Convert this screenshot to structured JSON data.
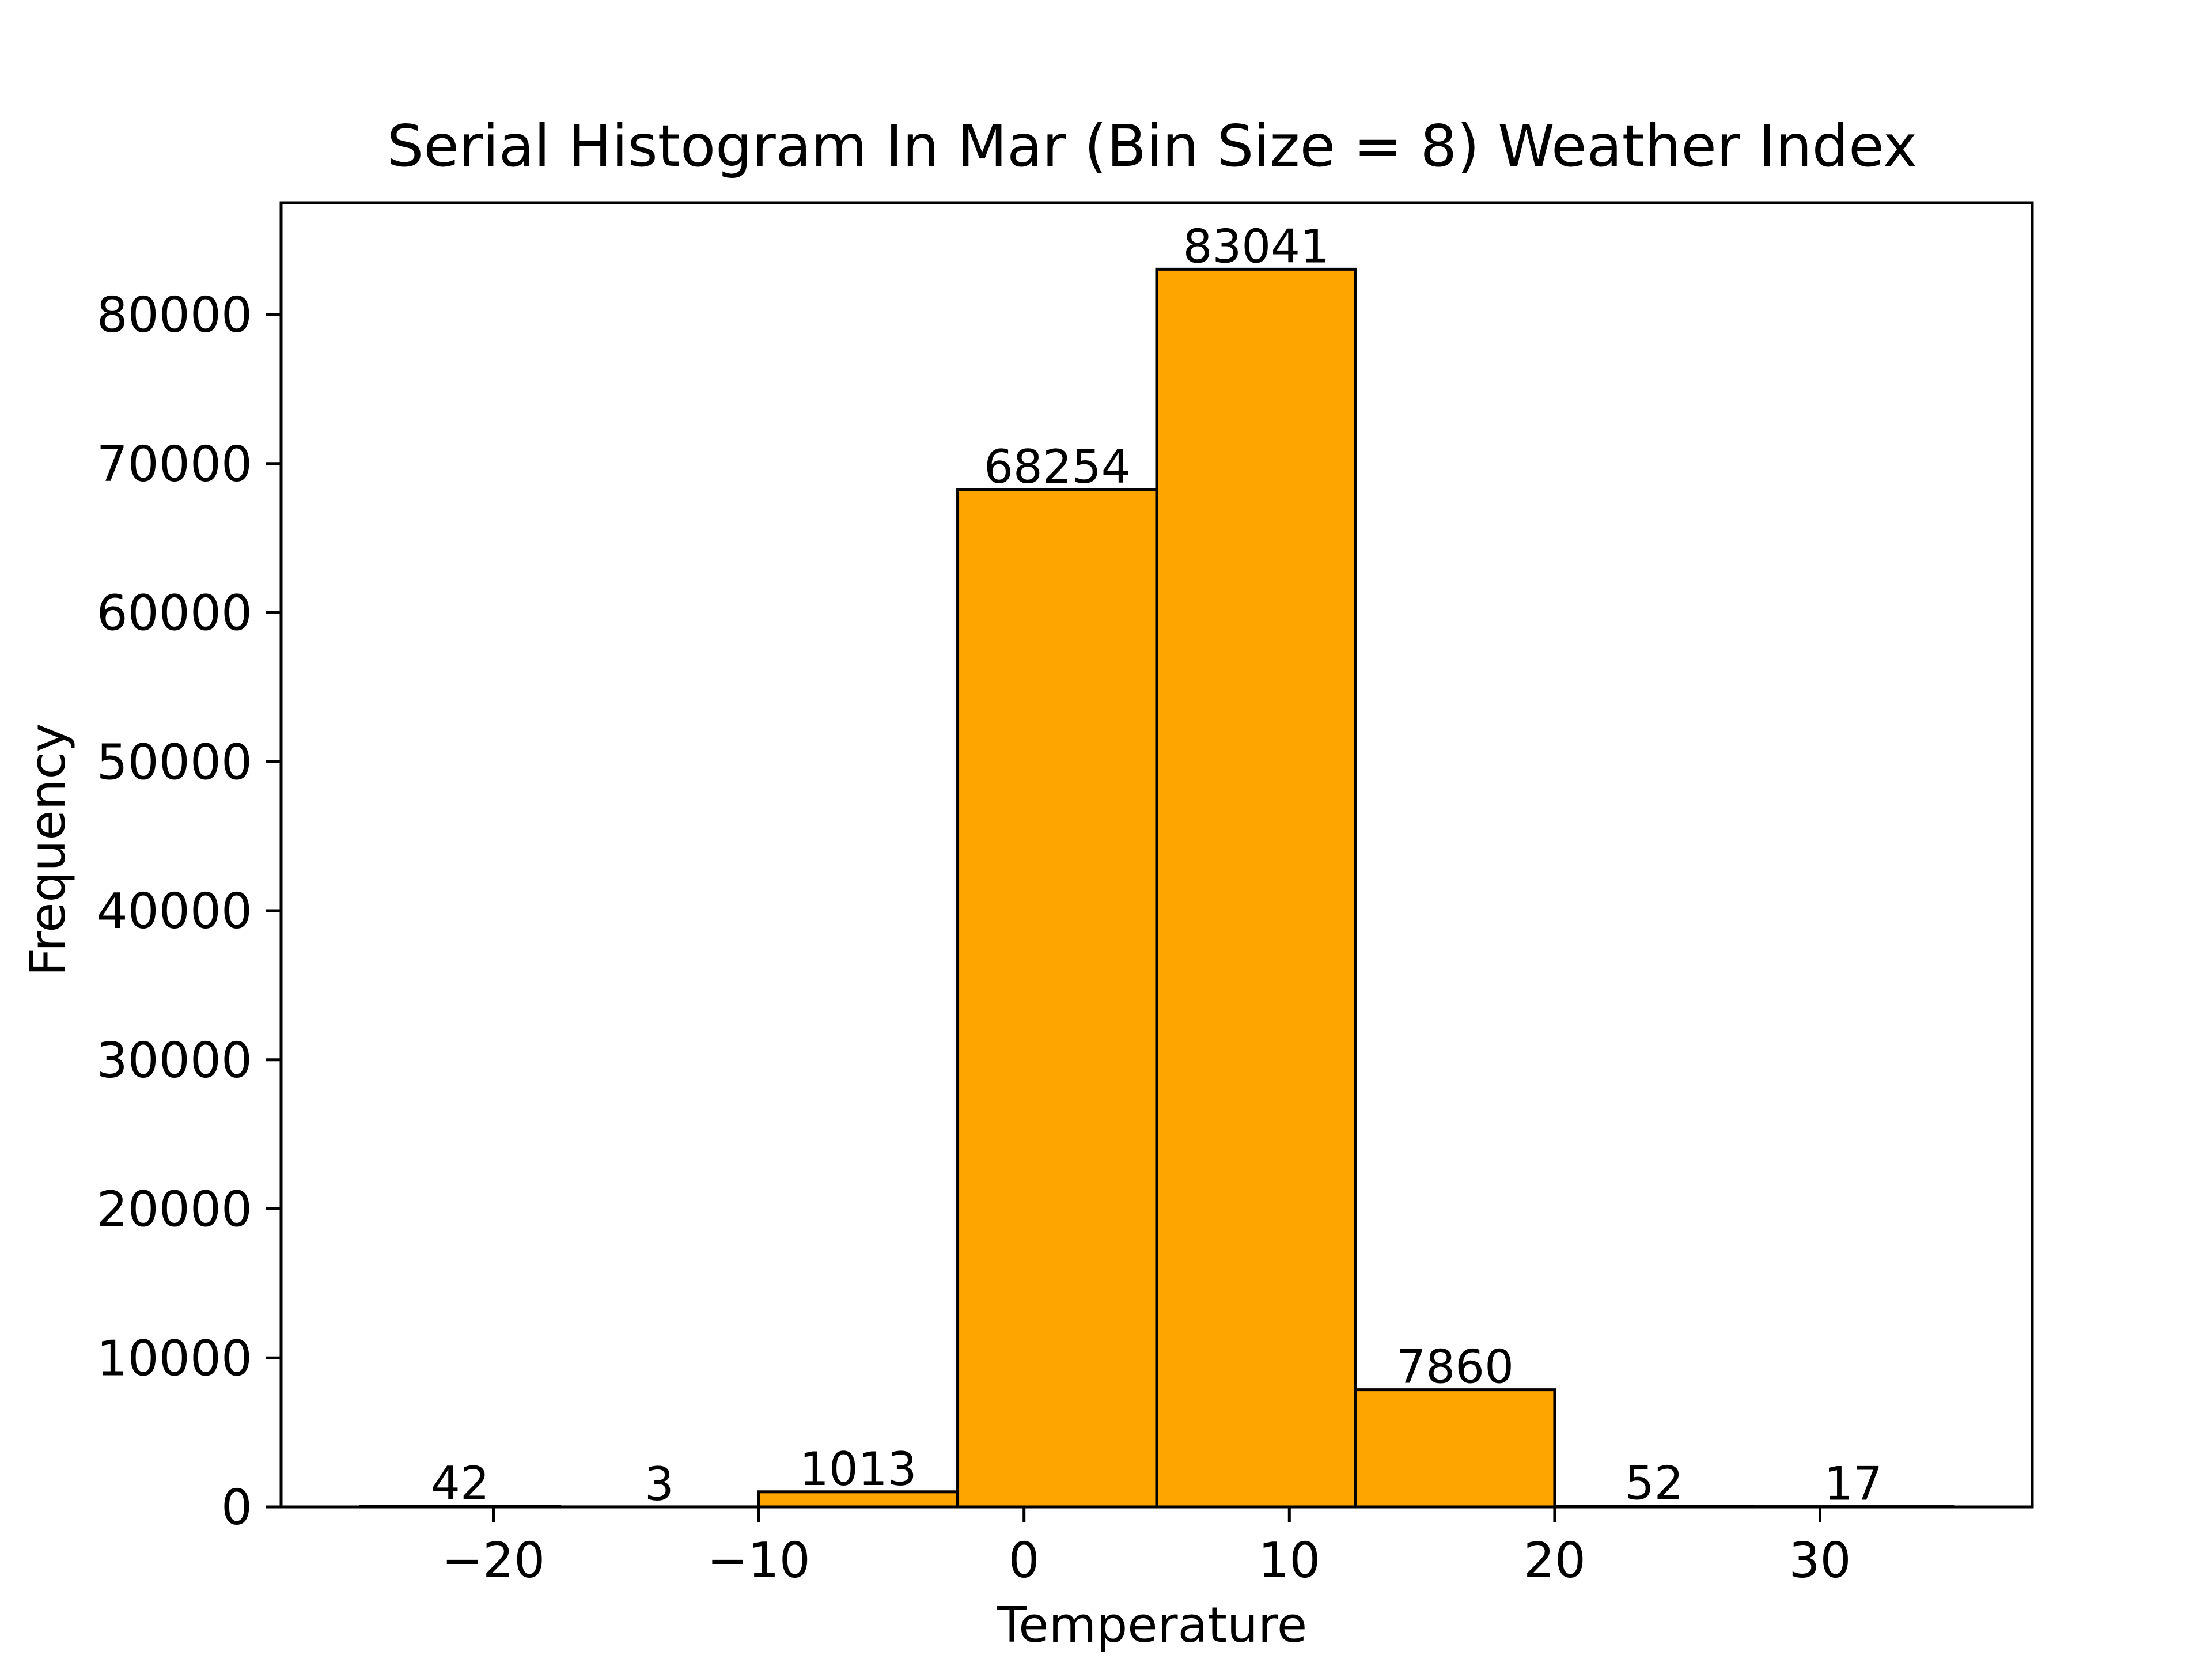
{
  "chart_data": {
    "type": "bar",
    "title": "Serial Histogram In Mar (Bin Size = 8) Weather Index",
    "xlabel": "Temperature",
    "ylabel": "Frequency",
    "bin_edges": [
      -25,
      -17.5,
      -10,
      -2.5,
      5,
      12.5,
      20,
      27.5,
      35
    ],
    "values": [
      42,
      3,
      1013,
      68254,
      83041,
      7860,
      52,
      17
    ],
    "value_labels": [
      "42",
      "3",
      "1013",
      "68254",
      "83041",
      "7860",
      "52",
      "17"
    ],
    "xlim": [
      -28,
      38
    ],
    "ylim": [
      0,
      87500
    ],
    "x_ticks": [
      -20,
      -10,
      0,
      10,
      20,
      30
    ],
    "x_tick_labels": [
      "−20",
      "−10",
      "0",
      "10",
      "20",
      "30"
    ],
    "y_ticks": [
      0,
      10000,
      20000,
      30000,
      40000,
      50000,
      60000,
      70000,
      80000
    ],
    "y_tick_labels": [
      "0",
      "10000",
      "20000",
      "30000",
      "40000",
      "50000",
      "60000",
      "70000",
      "80000"
    ],
    "grid": false,
    "legend": "none",
    "bar_color": "#FFA500",
    "edge_color": "#000000"
  }
}
